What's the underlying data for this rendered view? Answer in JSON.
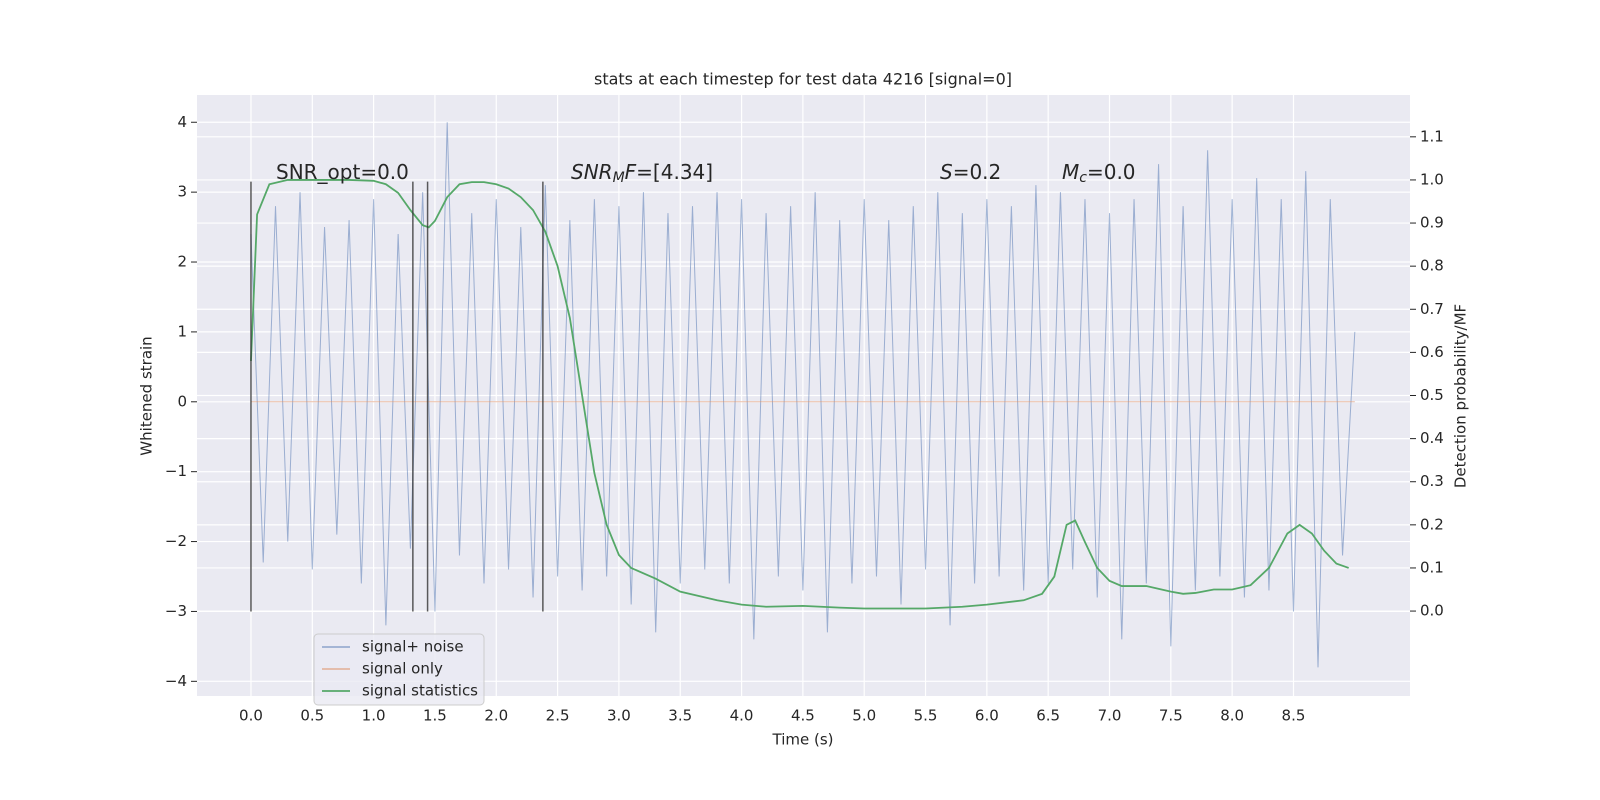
{
  "chart_data": {
    "type": "line",
    "title": "stats at each timestep for test data 4216 [signal=0]",
    "xlabel": "Time (s)",
    "ylabel": "Whitened strain",
    "y2label": "Detection probability/MF",
    "xlim": [
      -0.44,
      9.45
    ],
    "ylim": [
      -4.21,
      4.39
    ],
    "y2lim": [
      -0.197,
      1.197
    ],
    "xticks": [
      {
        "value": 0,
        "label": "0.0"
      },
      {
        "value": 0.5,
        "label": "0.5"
      },
      {
        "value": 1,
        "label": "1.0"
      },
      {
        "value": 1.5,
        "label": "1.5"
      },
      {
        "value": 2,
        "label": "2.0"
      },
      {
        "value": 2.5,
        "label": "2.5"
      },
      {
        "value": 3,
        "label": "3.0"
      },
      {
        "value": 3.5,
        "label": "3.5"
      },
      {
        "value": 4,
        "label": "4.0"
      },
      {
        "value": 4.5,
        "label": "4.5"
      },
      {
        "value": 5,
        "label": "5.0"
      },
      {
        "value": 5.5,
        "label": "5.5"
      },
      {
        "value": 6,
        "label": "6.0"
      },
      {
        "value": 6.5,
        "label": "6.5"
      },
      {
        "value": 7,
        "label": "7.0"
      },
      {
        "value": 7.5,
        "label": "7.5"
      },
      {
        "value": 8,
        "label": "8.0"
      },
      {
        "value": 8.5,
        "label": "8.5"
      }
    ],
    "yticks": [
      {
        "value": -4,
        "label": "−4"
      },
      {
        "value": -3,
        "label": "−3"
      },
      {
        "value": -2,
        "label": "−2"
      },
      {
        "value": -1,
        "label": "−1"
      },
      0,
      1,
      2,
      3,
      4
    ],
    "y2ticks": [
      {
        "value": 0,
        "label": "0.0"
      },
      {
        "value": 0.1,
        "label": "0.1"
      },
      {
        "value": 0.2,
        "label": "0.2"
      },
      {
        "value": 0.3,
        "label": "0.3"
      },
      {
        "value": 0.4,
        "label": "0.4"
      },
      {
        "value": 0.5,
        "label": "0.5"
      },
      {
        "value": 0.6,
        "label": "0.6"
      },
      {
        "value": 0.7,
        "label": "0.7"
      },
      {
        "value": 0.8,
        "label": "0.8"
      },
      {
        "value": 0.9,
        "label": "0.9"
      },
      {
        "value": 1,
        "label": "1.0"
      },
      {
        "value": 1.1,
        "label": "1.1"
      }
    ],
    "grid": true,
    "legend": "lower left",
    "series": [
      {
        "name": "signal+ noise",
        "color": "#4c72b0",
        "opacity": 0.5,
        "x": [
          0,
          0.1,
          0.2,
          0.3,
          0.4,
          0.5,
          0.6,
          0.7,
          0.8,
          0.9,
          1,
          1.1,
          1.2,
          1.3,
          1.4,
          1.5,
          1.6,
          1.7,
          1.8,
          1.9,
          2,
          2.1,
          2.2,
          2.3,
          2.4,
          2.5,
          2.6,
          2.7,
          2.8,
          2.9,
          3,
          3.1,
          3.2,
          3.3,
          3.4,
          3.5,
          3.6,
          3.7,
          3.8,
          3.9,
          4,
          4.1,
          4.2,
          4.3,
          4.4,
          4.5,
          4.6,
          4.7,
          4.8,
          4.9,
          5,
          5.1,
          5.2,
          5.3,
          5.4,
          5.5,
          5.6,
          5.7,
          5.8,
          5.9,
          6,
          6.1,
          6.2,
          6.3,
          6.4,
          6.5,
          6.6,
          6.7,
          6.8,
          6.9,
          7,
          7.1,
          7.2,
          7.3,
          7.4,
          7.5,
          7.6,
          7.7,
          7.8,
          7.9,
          8,
          8.1,
          8.2,
          8.3,
          8.4,
          8.5,
          8.6,
          8.7,
          8.8,
          8.9,
          9
        ],
        "values": [
          2.4,
          -2.3,
          2.8,
          -2.0,
          3.0,
          -2.4,
          2.5,
          -1.9,
          2.6,
          -2.6,
          2.9,
          -3.2,
          2.4,
          -2.1,
          3.0,
          -3.0,
          4.0,
          -2.2,
          2.7,
          -2.6,
          2.9,
          -2.4,
          2.5,
          -2.8,
          3.1,
          -2.5,
          2.6,
          -2.7,
          2.9,
          -2.5,
          2.8,
          -2.9,
          3.0,
          -3.3,
          2.7,
          -2.6,
          2.8,
          -2.4,
          3.0,
          -2.6,
          2.9,
          -3.4,
          2.7,
          -2.5,
          2.8,
          -2.7,
          3.0,
          -3.3,
          2.6,
          -2.6,
          2.9,
          -2.5,
          2.6,
          -2.9,
          2.8,
          -2.4,
          3.0,
          -3.2,
          2.7,
          -2.6,
          2.9,
          -2.5,
          2.8,
          -2.7,
          3.1,
          -2.6,
          3.0,
          -2.4,
          2.9,
          -2.8,
          2.7,
          -3.4,
          2.9,
          -2.6,
          3.4,
          -3.5,
          2.8,
          -2.7,
          3.6,
          -2.5,
          2.9,
          -2.8,
          3.2,
          -2.7,
          2.9,
          -3.0,
          3.3,
          -3.8,
          2.9,
          -2.2,
          1.0
        ]
      },
      {
        "name": "signal only",
        "color": "#dd8452",
        "opacity": 0.5,
        "x": [
          0,
          9
        ],
        "values": [
          0,
          0
        ]
      },
      {
        "name": "signal statistics",
        "color": "#55a868",
        "opacity": 1,
        "axis": "y2",
        "x": [
          0,
          0.05,
          0.15,
          0.3,
          0.5,
          0.8,
          1,
          1.1,
          1.2,
          1.3,
          1.4,
          1.45,
          1.5,
          1.6,
          1.7,
          1.8,
          1.9,
          2,
          2.1,
          2.2,
          2.3,
          2.4,
          2.5,
          2.6,
          2.7,
          2.8,
          2.9,
          3,
          3.1,
          3.3,
          3.5,
          3.8,
          4,
          4.2,
          4.5,
          4.8,
          5,
          5.5,
          5.8,
          6,
          6.3,
          6.45,
          6.55,
          6.65,
          6.72,
          6.8,
          6.9,
          7,
          7.1,
          7.3,
          7.5,
          7.6,
          7.7,
          7.85,
          8,
          8.15,
          8.3,
          8.45,
          8.55,
          8.65,
          8.75,
          8.85,
          8.95
        ],
        "values": [
          0.58,
          0.92,
          0.99,
          1.0,
          1.0,
          1.0,
          0.998,
          0.99,
          0.97,
          0.93,
          0.895,
          0.89,
          0.905,
          0.96,
          0.99,
          0.995,
          0.995,
          0.99,
          0.98,
          0.96,
          0.93,
          0.88,
          0.8,
          0.68,
          0.5,
          0.32,
          0.2,
          0.13,
          0.1,
          0.075,
          0.045,
          0.025,
          0.015,
          0.01,
          0.012,
          0.008,
          0.006,
          0.006,
          0.01,
          0.015,
          0.025,
          0.04,
          0.08,
          0.2,
          0.21,
          0.16,
          0.1,
          0.07,
          0.058,
          0.058,
          0.045,
          0.04,
          0.042,
          0.05,
          0.05,
          0.06,
          0.1,
          0.18,
          0.2,
          0.18,
          0.14,
          0.11,
          0.1
        ]
      }
    ],
    "vlines": {
      "x": [
        0,
        1.32,
        1.44,
        2.38
      ],
      "ymin": -3,
      "ymax": 3.15,
      "color": "#333333"
    },
    "annotations": [
      {
        "parts": [
          {
            "text": "SNR_opt=0.0"
          }
        ]
      },
      {
        "parts": [
          {
            "text": "SNR",
            "italic": true
          },
          {
            "text": "M",
            "italic": true,
            "sub": true
          },
          {
            "text": "F",
            "italic": true
          },
          {
            "text": "=[4.34]"
          }
        ]
      },
      {
        "parts": [
          {
            "text": "S",
            "italic": true
          },
          {
            "text": "=0.2"
          }
        ]
      },
      {
        "parts": [
          {
            "text": "M",
            "italic": true
          },
          {
            "text": "c",
            "italic": true,
            "sub": true
          },
          {
            "text": "=0.0"
          }
        ]
      }
    ]
  }
}
